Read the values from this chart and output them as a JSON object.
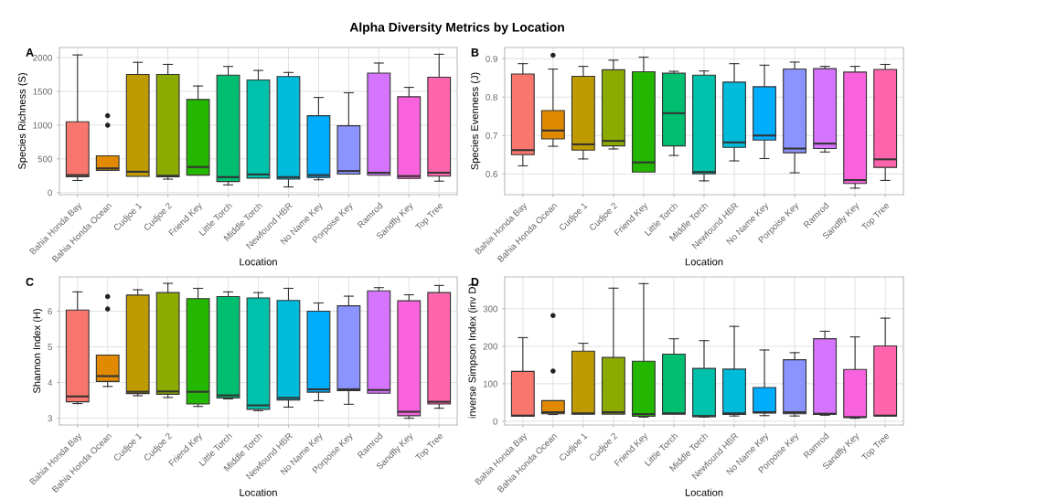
{
  "chart_data": [
    {
      "type": "box",
      "title": "Alpha Diversity Metrics by Location",
      "annotations": [
        "A"
      ],
      "xlabel": "Location",
      "ylabel": "Species Richness (S)",
      "categories": [
        "Bahia Honda Bay",
        "Bahia Honda Ocean",
        "Cudjoe 1",
        "Cudjoe 2",
        "Friend Key",
        "Little Torch",
        "Middle Torch",
        "Newfound HBR",
        "No Name Key",
        "Porpoise Key",
        "Ramrod",
        "Sandfly Key",
        "Top Tree"
      ],
      "colors": [
        "#F8766D",
        "#E18A00",
        "#BE9C00",
        "#8CAB00",
        "#24B700",
        "#00BE70",
        "#00C1AB",
        "#00BBDA",
        "#00ACFC",
        "#8B93FF",
        "#D575FE",
        "#F962DD",
        "#FF65AC"
      ],
      "boxes": [
        {
          "low": 180,
          "q1": 235,
          "median": 260,
          "q3": 1050,
          "high": 2040
        },
        {
          "low": 330,
          "q1": 330,
          "median": 360,
          "q3": 545,
          "high": 545,
          "outliers": [
            1000,
            1140
          ]
        },
        {
          "low": 240,
          "q1": 240,
          "median": 310,
          "q3": 1750,
          "high": 1930
        },
        {
          "low": 200,
          "q1": 235,
          "median": 250,
          "q3": 1750,
          "high": 1900
        },
        {
          "low": 260,
          "q1": 260,
          "median": 380,
          "q3": 1380,
          "high": 1580
        },
        {
          "low": 115,
          "q1": 165,
          "median": 230,
          "q3": 1740,
          "high": 1870
        },
        {
          "low": 215,
          "q1": 215,
          "median": 270,
          "q3": 1670,
          "high": 1810
        },
        {
          "low": 85,
          "q1": 200,
          "median": 230,
          "q3": 1720,
          "high": 1780
        },
        {
          "low": 190,
          "q1": 225,
          "median": 260,
          "q3": 1140,
          "high": 1410
        },
        {
          "low": 275,
          "q1": 275,
          "median": 320,
          "q3": 990,
          "high": 1480
        },
        {
          "low": 258,
          "q1": 258,
          "median": 295,
          "q3": 1770,
          "high": 1920
        },
        {
          "low": 210,
          "q1": 210,
          "median": 245,
          "q3": 1420,
          "high": 1560
        },
        {
          "low": 170,
          "q1": 245,
          "median": 295,
          "q3": 1710,
          "high": 2050
        }
      ],
      "ylim": [
        -30,
        2150
      ],
      "yticks": [
        0,
        500,
        1000,
        1500,
        2000
      ],
      "grid": true,
      "legend": false
    },
    {
      "type": "box",
      "annotations": [
        "B"
      ],
      "xlabel": "Location",
      "ylabel": "Species Evenness (J)",
      "categories": [
        "Bahia Honda Bay",
        "Bahia Honda Ocean",
        "Cudjoe 1",
        "Cudjoe 2",
        "Friend Key",
        "Little Torch",
        "Middle Torch",
        "Newfound HBR",
        "No Name Key",
        "Porpoise Key",
        "Ramrod",
        "Sandfly Key",
        "Top Tree"
      ],
      "colors": [
        "#F8766D",
        "#E18A00",
        "#BE9C00",
        "#8CAB00",
        "#24B700",
        "#00BE70",
        "#00C1AB",
        "#00BBDA",
        "#00ACFC",
        "#8B93FF",
        "#D575FE",
        "#F962DD",
        "#FF65AC"
      ],
      "boxes": [
        {
          "low": 0.621,
          "q1": 0.65,
          "median": 0.662,
          "q3": 0.86,
          "high": 0.887
        },
        {
          "low": 0.672,
          "q1": 0.691,
          "median": 0.713,
          "q3": 0.765,
          "high": 0.873,
          "outliers": [
            0.909
          ]
        },
        {
          "low": 0.639,
          "q1": 0.662,
          "median": 0.677,
          "q3": 0.854,
          "high": 0.88
        },
        {
          "low": 0.665,
          "q1": 0.673,
          "median": 0.686,
          "q3": 0.871,
          "high": 0.896
        },
        {
          "low": 0.605,
          "q1": 0.605,
          "median": 0.63,
          "q3": 0.866,
          "high": 0.904
        },
        {
          "low": 0.648,
          "q1": 0.673,
          "median": 0.758,
          "q3": 0.862,
          "high": 0.867
        },
        {
          "low": 0.582,
          "q1": 0.6,
          "median": 0.605,
          "q3": 0.857,
          "high": 0.868
        },
        {
          "low": 0.634,
          "q1": 0.669,
          "median": 0.682,
          "q3": 0.839,
          "high": 0.887
        },
        {
          "low": 0.64,
          "q1": 0.688,
          "median": 0.7,
          "q3": 0.827,
          "high": 0.883
        },
        {
          "low": 0.603,
          "q1": 0.655,
          "median": 0.666,
          "q3": 0.873,
          "high": 0.891
        },
        {
          "low": 0.657,
          "q1": 0.666,
          "median": 0.679,
          "q3": 0.874,
          "high": 0.88
        },
        {
          "low": 0.563,
          "q1": 0.575,
          "median": 0.584,
          "q3": 0.865,
          "high": 0.88
        },
        {
          "low": 0.583,
          "q1": 0.617,
          "median": 0.638,
          "q3": 0.872,
          "high": 0.885
        }
      ],
      "ylim": [
        0.546,
        0.929
      ],
      "yticks": [
        0.6,
        0.7,
        0.8,
        0.9
      ],
      "grid": true,
      "legend": false
    },
    {
      "type": "box",
      "annotations": [
        "C"
      ],
      "xlabel": "Location",
      "ylabel": "Shannon Index (H)",
      "categories": [
        "Bahia Honda Bay",
        "Bahia Honda Ocean",
        "Cudjoe 1",
        "Cudjoe 2",
        "Friend Key",
        "Little Torch",
        "Middle Torch",
        "Newfound HBR",
        "No Name Key",
        "Porpoise Key",
        "Ramrod",
        "Sandfly Key",
        "Top Tree"
      ],
      "colors": [
        "#F8766D",
        "#E18A00",
        "#BE9C00",
        "#8CAB00",
        "#24B700",
        "#00BE70",
        "#00C1AB",
        "#00BBDA",
        "#00ACFC",
        "#8B93FF",
        "#D575FE",
        "#F962DD",
        "#FF65AC"
      ],
      "boxes": [
        {
          "low": 3.41,
          "q1": 3.46,
          "median": 3.61,
          "q3": 6.03,
          "high": 6.54
        },
        {
          "low": 3.89,
          "q1": 4.03,
          "median": 4.18,
          "q3": 4.77,
          "high": 4.77,
          "outliers": [
            6.06,
            6.41
          ]
        },
        {
          "low": 3.63,
          "q1": 3.69,
          "median": 3.74,
          "q3": 6.45,
          "high": 6.6
        },
        {
          "low": 3.58,
          "q1": 3.67,
          "median": 3.75,
          "q3": 6.52,
          "high": 6.78
        },
        {
          "low": 3.33,
          "q1": 3.4,
          "median": 3.74,
          "q3": 6.35,
          "high": 6.64
        },
        {
          "low": 3.54,
          "q1": 3.57,
          "median": 3.64,
          "q3": 6.41,
          "high": 6.54
        },
        {
          "low": 3.21,
          "q1": 3.25,
          "median": 3.36,
          "q3": 6.37,
          "high": 6.52
        },
        {
          "low": 3.31,
          "q1": 3.51,
          "median": 3.57,
          "q3": 6.3,
          "high": 6.64
        },
        {
          "low": 3.49,
          "q1": 3.73,
          "median": 3.81,
          "q3": 6.0,
          "high": 6.23
        },
        {
          "low": 3.39,
          "q1": 3.77,
          "median": 3.81,
          "q3": 6.15,
          "high": 6.42
        },
        {
          "low": 3.7,
          "q1": 3.7,
          "median": 3.79,
          "q3": 6.57,
          "high": 6.66
        },
        {
          "low": 3.0,
          "q1": 3.07,
          "median": 3.18,
          "q3": 6.29,
          "high": 6.46
        },
        {
          "low": 3.28,
          "q1": 3.4,
          "median": 3.46,
          "q3": 6.52,
          "high": 6.72
        }
      ],
      "ylim": [
        2.81,
        6.96
      ],
      "yticks": [
        3,
        4,
        5,
        6
      ],
      "grid": true,
      "legend": false
    },
    {
      "type": "box",
      "annotations": [
        "D"
      ],
      "xlabel": "Location",
      "ylabel": "inverse Simpson Index (inv D)",
      "categories": [
        "Bahia Honda Bay",
        "Bahia Honda Ocean",
        "Cudjoe 1",
        "Cudjoe 2",
        "Friend Key",
        "Little Torch",
        "Middle Torch",
        "Newfound HBR",
        "No Name Key",
        "Porpoise Key",
        "Ramrod",
        "Sandfly Key",
        "Top Tree"
      ],
      "colors": [
        "#F8766D",
        "#E18A00",
        "#BE9C00",
        "#8CAB00",
        "#24B700",
        "#00BE70",
        "#00C1AB",
        "#00BBDA",
        "#00ACFC",
        "#8B93FF",
        "#D575FE",
        "#F962DD",
        "#FF65AC"
      ],
      "boxes": [
        {
          "low": 13,
          "q1": 13,
          "median": 15,
          "q3": 133,
          "high": 223
        },
        {
          "low": 18,
          "q1": 20,
          "median": 24,
          "q3": 55,
          "high": 55,
          "outliers": [
            134,
            282
          ]
        },
        {
          "low": 19,
          "q1": 19,
          "median": 21,
          "q3": 187,
          "high": 208
        },
        {
          "low": 19,
          "q1": 19,
          "median": 24,
          "q3": 170,
          "high": 355
        },
        {
          "low": 11,
          "q1": 13,
          "median": 19,
          "q3": 160,
          "high": 367
        },
        {
          "low": 19,
          "q1": 19,
          "median": 21,
          "q3": 179,
          "high": 220
        },
        {
          "low": 11,
          "q1": 12,
          "median": 14,
          "q3": 141,
          "high": 215
        },
        {
          "low": 14,
          "q1": 18,
          "median": 21,
          "q3": 139,
          "high": 253
        },
        {
          "low": 15,
          "q1": 22,
          "median": 24,
          "q3": 90,
          "high": 190
        },
        {
          "low": 14,
          "q1": 20,
          "median": 24,
          "q3": 164,
          "high": 183
        },
        {
          "low": 16,
          "q1": 18,
          "median": 20,
          "q3": 220,
          "high": 240
        },
        {
          "low": 8,
          "q1": 10,
          "median": 11,
          "q3": 138,
          "high": 225
        },
        {
          "low": 14,
          "q1": 14,
          "median": 15,
          "q3": 201,
          "high": 275
        }
      ],
      "ylim": [
        -10,
        385
      ],
      "yticks": [
        0,
        100,
        200,
        300
      ],
      "grid": true,
      "legend": false
    }
  ]
}
